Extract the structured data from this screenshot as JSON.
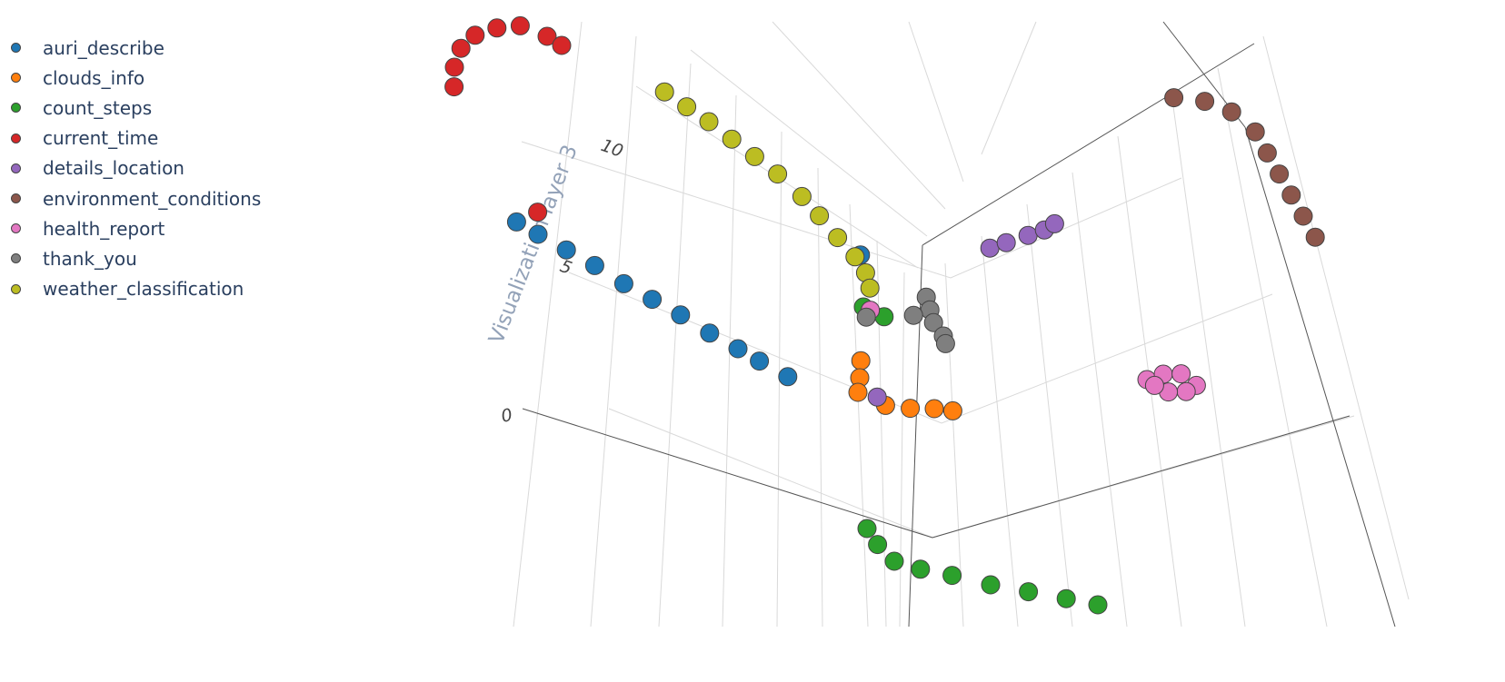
{
  "chart_data": {
    "type": "scatter3d",
    "zlabel": "Visualization layer 3",
    "z_ticks": [
      "0",
      "5",
      "10"
    ],
    "legend_position": "top-left",
    "grid": true,
    "series": [
      {
        "name": "auri_describe",
        "color": "#1f77b4",
        "points": [
          [
            -6.5,
            0,
            6.2
          ],
          [
            -6.2,
            0,
            5.8
          ],
          [
            -5.8,
            0,
            5.3
          ],
          [
            -5.4,
            0,
            4.8
          ],
          [
            -5.0,
            0,
            4.2
          ],
          [
            -4.6,
            0,
            3.7
          ],
          [
            -4.2,
            0,
            3.2
          ],
          [
            -3.8,
            0,
            2.6
          ],
          [
            -3.4,
            0,
            2.1
          ],
          [
            -3.1,
            0,
            1.7
          ],
          [
            -2.7,
            0,
            1.2
          ],
          [
            -0.9,
            0,
            6.5
          ]
        ]
      },
      {
        "name": "clouds_info",
        "color": "#ff7f0e",
        "points": [
          [
            -1.4,
            0,
            2.2
          ],
          [
            -1.5,
            0,
            1.5
          ],
          [
            -1.6,
            0,
            0.9
          ],
          [
            -1.2,
            0,
            0.5
          ],
          [
            -0.8,
            0,
            0.5
          ],
          [
            -0.4,
            0,
            0.6
          ],
          [
            -0.1,
            0,
            0.6
          ]
        ]
      },
      {
        "name": "count_steps",
        "color": "#2ca02c",
        "points": [
          [
            -2.1,
            0,
            -4.6
          ],
          [
            -2.0,
            0,
            -5.2
          ],
          [
            -1.8,
            0,
            -5.8
          ],
          [
            -1.4,
            0,
            -6.0
          ],
          [
            -0.9,
            0,
            -6.1
          ],
          [
            -0.3,
            0,
            -6.3
          ],
          [
            0.3,
            0,
            -6.4
          ],
          [
            0.9,
            0,
            -6.5
          ],
          [
            1.4,
            0,
            -6.6
          ],
          [
            -1.1,
            0,
            4.4
          ],
          [
            -0.8,
            0,
            4.1
          ]
        ]
      },
      {
        "name": "current_time",
        "color": "#d62728",
        "points": [
          [
            -6.9,
            0,
            11.4
          ],
          [
            -6.8,
            0,
            12.2
          ],
          [
            -6.6,
            0,
            13.0
          ],
          [
            -6.3,
            0,
            13.6
          ],
          [
            -5.9,
            0,
            14.0
          ],
          [
            -5.5,
            0,
            14.2
          ],
          [
            -5.1,
            0,
            13.9
          ],
          [
            -4.9,
            0,
            13.6
          ],
          [
            -6.1,
            0,
            6.7
          ]
        ]
      },
      {
        "name": "details_location",
        "color": "#9467bd",
        "points": [
          [
            1.3,
            0,
            7.4
          ],
          [
            1.6,
            0,
            7.7
          ],
          [
            2.0,
            0,
            8.1
          ],
          [
            2.3,
            0,
            8.4
          ],
          [
            2.5,
            0,
            8.7
          ],
          [
            -1.3,
            0,
            0.8
          ]
        ]
      },
      {
        "name": "environment_conditions",
        "color": "#8c564b",
        "points": [
          [
            5.1,
            0,
            14.4
          ],
          [
            5.6,
            0,
            14.4
          ],
          [
            6.0,
            0,
            14.1
          ],
          [
            6.3,
            0,
            13.4
          ],
          [
            6.4,
            0,
            12.6
          ],
          [
            6.5,
            0,
            11.8
          ],
          [
            6.6,
            0,
            11.0
          ],
          [
            6.7,
            0,
            10.2
          ],
          [
            6.8,
            0,
            9.4
          ]
        ]
      },
      {
        "name": "health_report",
        "color": "#e377c2",
        "points": [
          [
            3.3,
            0,
            2.8
          ],
          [
            3.6,
            0,
            3.1
          ],
          [
            3.9,
            0,
            3.2
          ],
          [
            4.1,
            0,
            2.8
          ],
          [
            3.9,
            0,
            2.5
          ],
          [
            3.6,
            0,
            2.4
          ],
          [
            3.4,
            0,
            2.6
          ],
          [
            -1.0,
            0,
            4.3
          ]
        ]
      },
      {
        "name": "thank_you",
        "color": "#7f7f7f",
        "points": [
          [
            0.0,
            0,
            5.1
          ],
          [
            0.0,
            0,
            4.6
          ],
          [
            0.0,
            0,
            4.1
          ],
          [
            0.1,
            0,
            3.6
          ],
          [
            0.1,
            0,
            3.3
          ],
          [
            -0.3,
            0,
            4.3
          ],
          [
            -1.1,
            0,
            4.0
          ]
        ]
      },
      {
        "name": "weather_classification",
        "color": "#bcbd22",
        "points": [
          [
            -3.4,
            0,
            12.2
          ],
          [
            -3.1,
            0,
            11.7
          ],
          [
            -2.8,
            0,
            11.2
          ],
          [
            -2.5,
            0,
            10.6
          ],
          [
            -2.2,
            0,
            10.0
          ],
          [
            -1.9,
            0,
            9.4
          ],
          [
            -1.6,
            0,
            8.6
          ],
          [
            -1.4,
            0,
            7.9
          ],
          [
            -1.2,
            0,
            7.1
          ],
          [
            -1.0,
            0,
            6.4
          ],
          [
            -0.9,
            0,
            5.8
          ],
          [
            -0.9,
            0,
            5.2
          ]
        ]
      }
    ]
  }
}
